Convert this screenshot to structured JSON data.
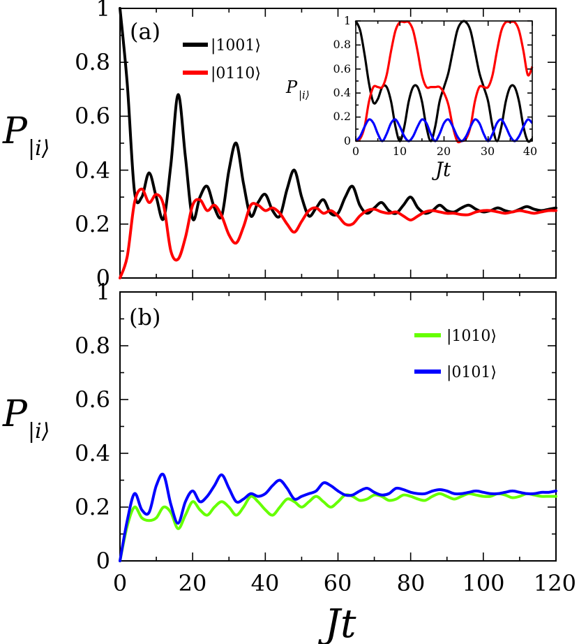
{
  "chart_data": [
    {
      "panel": "(a)",
      "type": "line",
      "xlabel": "",
      "ylabel": "P",
      "ylabel_subscript": "|i⟩",
      "xlim": [
        0,
        120
      ],
      "ylim": [
        0,
        1
      ],
      "xticks": [
        0,
        20,
        40,
        60,
        80,
        100,
        120
      ],
      "yticks": [
        "0",
        "0.2",
        "0.4",
        "0.6",
        "0.8",
        "1"
      ],
      "legend_position": "top-left",
      "series": [
        {
          "name": "|1001⟩",
          "color": "#000000",
          "x": [
            0,
            2,
            4,
            6,
            8,
            10,
            12,
            14,
            16,
            18,
            20,
            22,
            24,
            26,
            28,
            30,
            32,
            34,
            36,
            38,
            40,
            42,
            44,
            46,
            48,
            50,
            52,
            54,
            56,
            58,
            60,
            62,
            64,
            66,
            68,
            70,
            72,
            74,
            76,
            78,
            80,
            82,
            84,
            86,
            88,
            90,
            92,
            94,
            96,
            98,
            100,
            102,
            104,
            106,
            108,
            110,
            112,
            114,
            116,
            118,
            120
          ],
          "values": [
            1.0,
            0.72,
            0.32,
            0.3,
            0.39,
            0.3,
            0.22,
            0.42,
            0.68,
            0.45,
            0.22,
            0.3,
            0.34,
            0.26,
            0.23,
            0.4,
            0.5,
            0.35,
            0.23,
            0.28,
            0.31,
            0.25,
            0.23,
            0.33,
            0.4,
            0.3,
            0.23,
            0.26,
            0.29,
            0.24,
            0.24,
            0.3,
            0.34,
            0.27,
            0.24,
            0.26,
            0.28,
            0.25,
            0.24,
            0.27,
            0.3,
            0.26,
            0.24,
            0.25,
            0.27,
            0.25,
            0.245,
            0.26,
            0.27,
            0.255,
            0.245,
            0.25,
            0.26,
            0.25,
            0.245,
            0.255,
            0.265,
            0.255,
            0.25,
            0.255,
            0.26
          ]
        },
        {
          "name": "|0110⟩",
          "color": "#ff0000",
          "x": [
            0,
            2,
            4,
            6,
            8,
            10,
            12,
            14,
            16,
            18,
            20,
            22,
            24,
            26,
            28,
            30,
            32,
            34,
            36,
            38,
            40,
            42,
            44,
            46,
            48,
            50,
            52,
            54,
            56,
            58,
            60,
            62,
            64,
            66,
            68,
            70,
            72,
            74,
            76,
            78,
            80,
            82,
            84,
            86,
            88,
            90,
            92,
            94,
            96,
            98,
            100,
            102,
            104,
            106,
            108,
            110,
            112,
            114,
            116,
            118,
            120
          ],
          "values": [
            0.0,
            0.08,
            0.28,
            0.33,
            0.28,
            0.31,
            0.27,
            0.1,
            0.07,
            0.15,
            0.27,
            0.29,
            0.25,
            0.27,
            0.23,
            0.16,
            0.13,
            0.19,
            0.27,
            0.27,
            0.25,
            0.26,
            0.24,
            0.2,
            0.17,
            0.21,
            0.25,
            0.26,
            0.24,
            0.25,
            0.23,
            0.2,
            0.2,
            0.23,
            0.25,
            0.255,
            0.245,
            0.24,
            0.245,
            0.23,
            0.215,
            0.23,
            0.245,
            0.25,
            0.245,
            0.24,
            0.24,
            0.235,
            0.235,
            0.245,
            0.25,
            0.25,
            0.245,
            0.24,
            0.245,
            0.25,
            0.245,
            0.24,
            0.245,
            0.25,
            0.25
          ]
        }
      ]
    },
    {
      "panel": "inset of (a)",
      "type": "line",
      "xlabel": "Jt",
      "ylabel": "P",
      "ylabel_subscript": "|i⟩",
      "xlim": [
        0,
        40
      ],
      "ylim": [
        0,
        1
      ],
      "xticks": [
        "0",
        "10",
        "20",
        "30",
        "40"
      ],
      "yticks": [
        "0",
        "0.2",
        "0.4",
        "0.6",
        "0.8",
        "1"
      ],
      "series": [
        {
          "name": "|1001⟩",
          "color": "#000000",
          "x": [
            0,
            1,
            2,
            3,
            4,
            5,
            6,
            7,
            8,
            9,
            10,
            11,
            12,
            13,
            14,
            15,
            16,
            17,
            18,
            19,
            20,
            21,
            22,
            23,
            24,
            25,
            26,
            27,
            28,
            29,
            30,
            31,
            32,
            33,
            34,
            35,
            36,
            37,
            38,
            39,
            40
          ],
          "values": [
            1.0,
            0.92,
            0.72,
            0.48,
            0.32,
            0.35,
            0.45,
            0.45,
            0.33,
            0.12,
            0.0,
            0.12,
            0.33,
            0.45,
            0.45,
            0.33,
            0.12,
            0.0,
            0.12,
            0.33,
            0.45,
            0.57,
            0.75,
            0.92,
            0.99,
            0.99,
            0.92,
            0.75,
            0.57,
            0.45,
            0.33,
            0.12,
            0.0,
            0.12,
            0.33,
            0.45,
            0.45,
            0.33,
            0.12,
            0.0,
            0.02
          ]
        },
        {
          "name": "|0110⟩",
          "color": "#ff0000",
          "x": [
            0,
            1,
            2,
            3,
            4,
            5,
            6,
            7,
            8,
            9,
            10,
            11,
            12,
            13,
            14,
            15,
            16,
            17,
            18,
            19,
            20,
            21,
            22,
            23,
            24,
            25,
            26,
            27,
            28,
            29,
            30,
            31,
            32,
            33,
            34,
            35,
            36,
            37,
            38,
            39,
            40
          ],
          "values": [
            0.0,
            0.02,
            0.12,
            0.33,
            0.45,
            0.45,
            0.45,
            0.55,
            0.75,
            0.92,
            0.99,
            0.99,
            0.99,
            0.92,
            0.75,
            0.55,
            0.45,
            0.45,
            0.45,
            0.45,
            0.4,
            0.3,
            0.12,
            0.0,
            0.0,
            0.02,
            0.12,
            0.33,
            0.45,
            0.45,
            0.45,
            0.55,
            0.75,
            0.92,
            0.99,
            0.99,
            0.99,
            0.92,
            0.75,
            0.55,
            0.62
          ]
        },
        {
          "name": "|1010⟩/|0101⟩",
          "color": "#0000ff",
          "x": [
            0,
            1,
            2,
            3,
            4,
            5,
            6,
            7,
            8,
            9,
            10,
            11,
            12,
            13,
            14,
            15,
            16,
            17,
            18,
            19,
            20,
            21,
            22,
            23,
            24,
            25,
            26,
            27,
            28,
            29,
            30,
            31,
            32,
            33,
            34,
            35,
            36,
            37,
            38,
            39,
            40
          ],
          "values": [
            0.0,
            0.04,
            0.12,
            0.18,
            0.15,
            0.06,
            0.0,
            0.06,
            0.15,
            0.18,
            0.12,
            0.04,
            0.0,
            0.04,
            0.12,
            0.18,
            0.15,
            0.06,
            0.0,
            0.06,
            0.15,
            0.18,
            0.12,
            0.04,
            0.0,
            0.04,
            0.12,
            0.18,
            0.15,
            0.06,
            0.0,
            0.06,
            0.15,
            0.18,
            0.12,
            0.04,
            0.0,
            0.04,
            0.12,
            0.18,
            0.15
          ]
        }
      ]
    },
    {
      "panel": "(b)",
      "type": "line",
      "xlabel": "Jt",
      "ylabel": "P",
      "ylabel_subscript": "|i⟩",
      "xlim": [
        0,
        120
      ],
      "ylim": [
        0,
        1
      ],
      "xticks": [
        "0",
        "20",
        "40",
        "60",
        "80",
        "100",
        "120"
      ],
      "yticks": [
        "0",
        "0.2",
        "0.4",
        "0.6",
        "0.8",
        "1"
      ],
      "legend_position": "top-right",
      "series": [
        {
          "name": "|1010⟩",
          "color": "#66ff00",
          "x": [
            0,
            2,
            4,
            6,
            8,
            10,
            12,
            14,
            16,
            18,
            20,
            22,
            24,
            26,
            28,
            30,
            32,
            34,
            36,
            38,
            40,
            42,
            44,
            46,
            48,
            50,
            52,
            54,
            56,
            58,
            60,
            62,
            64,
            66,
            68,
            70,
            72,
            74,
            76,
            78,
            80,
            82,
            84,
            86,
            88,
            90,
            92,
            94,
            96,
            98,
            100,
            102,
            104,
            106,
            108,
            110,
            112,
            114,
            116,
            118,
            120
          ],
          "values": [
            0.0,
            0.13,
            0.2,
            0.16,
            0.15,
            0.16,
            0.2,
            0.18,
            0.12,
            0.17,
            0.22,
            0.19,
            0.17,
            0.2,
            0.22,
            0.2,
            0.17,
            0.2,
            0.24,
            0.22,
            0.19,
            0.17,
            0.2,
            0.23,
            0.22,
            0.2,
            0.22,
            0.24,
            0.22,
            0.2,
            0.22,
            0.245,
            0.24,
            0.225,
            0.23,
            0.245,
            0.24,
            0.225,
            0.23,
            0.245,
            0.24,
            0.23,
            0.225,
            0.24,
            0.25,
            0.24,
            0.23,
            0.24,
            0.25,
            0.245,
            0.24,
            0.24,
            0.25,
            0.245,
            0.235,
            0.24,
            0.25,
            0.245,
            0.24,
            0.24,
            0.24
          ]
        },
        {
          "name": "|0101⟩",
          "color": "#0000ff",
          "x": [
            0,
            2,
            4,
            6,
            8,
            10,
            12,
            14,
            16,
            18,
            20,
            22,
            24,
            26,
            28,
            30,
            32,
            34,
            36,
            38,
            40,
            42,
            44,
            46,
            48,
            50,
            52,
            54,
            56,
            58,
            60,
            62,
            64,
            66,
            68,
            70,
            72,
            74,
            76,
            78,
            80,
            82,
            84,
            86,
            88,
            90,
            92,
            94,
            96,
            98,
            100,
            102,
            104,
            106,
            108,
            110,
            112,
            114,
            116,
            118,
            120
          ],
          "values": [
            0.0,
            0.15,
            0.25,
            0.19,
            0.18,
            0.28,
            0.32,
            0.21,
            0.14,
            0.22,
            0.26,
            0.22,
            0.24,
            0.28,
            0.32,
            0.27,
            0.22,
            0.23,
            0.25,
            0.24,
            0.25,
            0.28,
            0.3,
            0.27,
            0.23,
            0.24,
            0.25,
            0.26,
            0.29,
            0.28,
            0.26,
            0.245,
            0.245,
            0.26,
            0.27,
            0.255,
            0.245,
            0.25,
            0.27,
            0.265,
            0.255,
            0.25,
            0.25,
            0.26,
            0.265,
            0.26,
            0.25,
            0.25,
            0.255,
            0.26,
            0.255,
            0.25,
            0.25,
            0.255,
            0.26,
            0.255,
            0.25,
            0.25,
            0.255,
            0.255,
            0.26
          ]
        }
      ]
    }
  ]
}
